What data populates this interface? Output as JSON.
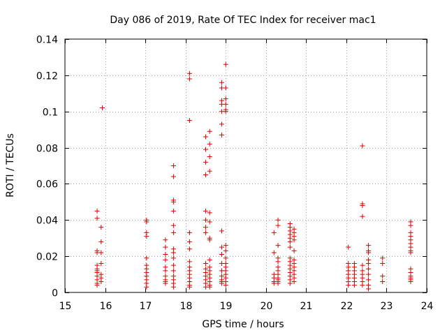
{
  "chart_data": {
    "type": "scatter",
    "title": "Day 086 of 2019, Rate Of TEC Index for receiver mac1",
    "xlabel": "GPS time / hours",
    "ylabel": "ROTI / TECUs",
    "xlim": [
      15,
      24
    ],
    "ylim": [
      0,
      0.14
    ],
    "grid": true,
    "marker": "plus",
    "series_color": "#e00000",
    "xticks": [
      15,
      16,
      17,
      18,
      19,
      20,
      21,
      22,
      23,
      24
    ],
    "xtick_labels": [
      "15",
      "16",
      "17",
      "18",
      "19",
      "20",
      "21",
      "22",
      "23",
      "24"
    ],
    "yticks": [
      0,
      0.02,
      0.04,
      0.06,
      0.08,
      0.1,
      0.12,
      0.14
    ],
    "ytick_labels": [
      "0",
      "0.02",
      "0.04",
      "0.06",
      "0.08",
      "0.1",
      "0.12",
      "0.14"
    ],
    "series": [
      {
        "name": "ROTI",
        "points": [
          [
            15.8,
            0.045
          ],
          [
            15.8,
            0.041
          ],
          [
            15.8,
            0.023
          ],
          [
            15.8,
            0.022
          ],
          [
            15.8,
            0.015
          ],
          [
            15.8,
            0.013
          ],
          [
            15.8,
            0.012
          ],
          [
            15.8,
            0.011
          ],
          [
            15.8,
            0.009
          ],
          [
            15.8,
            0.007
          ],
          [
            15.8,
            0.005
          ],
          [
            15.8,
            0.004
          ],
          [
            15.9,
            0.036
          ],
          [
            15.9,
            0.028
          ],
          [
            15.9,
            0.022
          ],
          [
            15.9,
            0.016
          ],
          [
            15.9,
            0.01
          ],
          [
            15.9,
            0.008
          ],
          [
            15.9,
            0.006
          ],
          [
            15.93,
            0.102
          ],
          [
            17.03,
            0.04
          ],
          [
            17.03,
            0.039
          ],
          [
            17.03,
            0.033
          ],
          [
            17.03,
            0.031
          ],
          [
            17.03,
            0.019
          ],
          [
            17.03,
            0.015
          ],
          [
            17.03,
            0.013
          ],
          [
            17.03,
            0.011
          ],
          [
            17.03,
            0.009
          ],
          [
            17.03,
            0.007
          ],
          [
            17.03,
            0.005
          ],
          [
            17.03,
            0.003
          ],
          [
            17.5,
            0.029
          ],
          [
            17.5,
            0.025
          ],
          [
            17.5,
            0.021
          ],
          [
            17.5,
            0.018
          ],
          [
            17.5,
            0.014
          ],
          [
            17.5,
            0.012
          ],
          [
            17.5,
            0.009
          ],
          [
            17.5,
            0.007
          ],
          [
            17.5,
            0.006
          ],
          [
            17.5,
            0.005
          ],
          [
            17.7,
            0.07
          ],
          [
            17.7,
            0.064
          ],
          [
            17.7,
            0.051
          ],
          [
            17.7,
            0.05
          ],
          [
            17.7,
            0.045
          ],
          [
            17.7,
            0.037
          ],
          [
            17.7,
            0.033
          ],
          [
            17.7,
            0.024
          ],
          [
            17.7,
            0.022
          ],
          [
            17.7,
            0.019
          ],
          [
            17.7,
            0.015
          ],
          [
            17.7,
            0.012
          ],
          [
            17.7,
            0.009
          ],
          [
            17.7,
            0.007
          ],
          [
            17.7,
            0.005
          ],
          [
            17.7,
            0.003
          ],
          [
            18.1,
            0.121
          ],
          [
            18.1,
            0.118
          ],
          [
            18.1,
            0.095
          ],
          [
            18.1,
            0.033
          ],
          [
            18.1,
            0.028
          ],
          [
            18.1,
            0.024
          ],
          [
            18.1,
            0.017
          ],
          [
            18.1,
            0.014
          ],
          [
            18.1,
            0.012
          ],
          [
            18.1,
            0.01
          ],
          [
            18.1,
            0.008
          ],
          [
            18.1,
            0.006
          ],
          [
            18.1,
            0.004
          ],
          [
            18.1,
            0.003
          ],
          [
            18.5,
            0.065
          ],
          [
            18.5,
            0.072
          ],
          [
            18.5,
            0.079
          ],
          [
            18.5,
            0.086
          ],
          [
            18.5,
            0.045
          ],
          [
            18.5,
            0.04
          ],
          [
            18.5,
            0.036
          ],
          [
            18.5,
            0.033
          ],
          [
            18.5,
            0.016
          ],
          [
            18.5,
            0.013
          ],
          [
            18.5,
            0.011
          ],
          [
            18.5,
            0.009
          ],
          [
            18.5,
            0.007
          ],
          [
            18.5,
            0.005
          ],
          [
            18.5,
            0.003
          ],
          [
            18.6,
            0.089
          ],
          [
            18.6,
            0.082
          ],
          [
            18.6,
            0.075
          ],
          [
            18.6,
            0.067
          ],
          [
            18.6,
            0.044
          ],
          [
            18.6,
            0.039
          ],
          [
            18.6,
            0.03
          ],
          [
            18.6,
            0.029
          ],
          [
            18.6,
            0.018
          ],
          [
            18.6,
            0.014
          ],
          [
            18.6,
            0.012
          ],
          [
            18.6,
            0.01
          ],
          [
            18.6,
            0.008
          ],
          [
            18.6,
            0.006
          ],
          [
            18.6,
            0.004
          ],
          [
            18.6,
            0.003
          ],
          [
            18.9,
            0.116
          ],
          [
            18.9,
            0.113
          ],
          [
            18.9,
            0.106
          ],
          [
            18.9,
            0.104
          ],
          [
            18.9,
            0.1
          ],
          [
            18.9,
            0.093
          ],
          [
            18.9,
            0.087
          ],
          [
            18.9,
            0.034
          ],
          [
            18.9,
            0.025
          ],
          [
            18.9,
            0.021
          ],
          [
            18.9,
            0.016
          ],
          [
            18.9,
            0.012
          ],
          [
            18.9,
            0.009
          ],
          [
            18.9,
            0.007
          ],
          [
            18.9,
            0.006
          ],
          [
            18.9,
            0.005
          ],
          [
            19.0,
            0.126
          ],
          [
            19.0,
            0.113
          ],
          [
            19.0,
            0.107
          ],
          [
            19.0,
            0.104
          ],
          [
            19.0,
            0.101
          ],
          [
            19.0,
            0.1
          ],
          [
            19.0,
            0.026
          ],
          [
            19.0,
            0.023
          ],
          [
            19.0,
            0.019
          ],
          [
            19.0,
            0.016
          ],
          [
            19.0,
            0.014
          ],
          [
            19.0,
            0.012
          ],
          [
            19.0,
            0.01
          ],
          [
            19.0,
            0.008
          ],
          [
            19.0,
            0.006
          ],
          [
            19.0,
            0.004
          ],
          [
            20.2,
            0.033
          ],
          [
            20.2,
            0.022
          ],
          [
            20.2,
            0.01
          ],
          [
            20.2,
            0.008
          ],
          [
            20.2,
            0.006
          ],
          [
            20.2,
            0.005
          ],
          [
            20.3,
            0.04
          ],
          [
            20.3,
            0.037
          ],
          [
            20.3,
            0.026
          ],
          [
            20.3,
            0.019
          ],
          [
            20.3,
            0.017
          ],
          [
            20.3,
            0.014
          ],
          [
            20.3,
            0.012
          ],
          [
            20.3,
            0.01
          ],
          [
            20.3,
            0.008
          ],
          [
            20.3,
            0.007
          ],
          [
            20.3,
            0.006
          ],
          [
            20.3,
            0.005
          ],
          [
            20.6,
            0.038
          ],
          [
            20.6,
            0.036
          ],
          [
            20.6,
            0.034
          ],
          [
            20.6,
            0.032
          ],
          [
            20.6,
            0.03
          ],
          [
            20.6,
            0.028
          ],
          [
            20.6,
            0.025
          ],
          [
            20.6,
            0.019
          ],
          [
            20.6,
            0.017
          ],
          [
            20.6,
            0.015
          ],
          [
            20.6,
            0.013
          ],
          [
            20.6,
            0.011
          ],
          [
            20.6,
            0.009
          ],
          [
            20.6,
            0.007
          ],
          [
            20.6,
            0.005
          ],
          [
            20.7,
            0.035
          ],
          [
            20.7,
            0.033
          ],
          [
            20.7,
            0.031
          ],
          [
            20.7,
            0.029
          ],
          [
            20.7,
            0.023
          ],
          [
            20.7,
            0.018
          ],
          [
            20.7,
            0.016
          ],
          [
            20.7,
            0.014
          ],
          [
            20.7,
            0.012
          ],
          [
            20.7,
            0.01
          ],
          [
            20.7,
            0.008
          ],
          [
            20.7,
            0.006
          ],
          [
            22.05,
            0.025
          ],
          [
            22.05,
            0.016
          ],
          [
            22.05,
            0.014
          ],
          [
            22.05,
            0.012
          ],
          [
            22.05,
            0.01
          ],
          [
            22.05,
            0.008
          ],
          [
            22.05,
            0.006
          ],
          [
            22.05,
            0.004
          ],
          [
            22.2,
            0.016
          ],
          [
            22.2,
            0.014
          ],
          [
            22.2,
            0.012
          ],
          [
            22.2,
            0.01
          ],
          [
            22.2,
            0.008
          ],
          [
            22.2,
            0.006
          ],
          [
            22.2,
            0.004
          ],
          [
            22.4,
            0.081
          ],
          [
            22.4,
            0.049
          ],
          [
            22.4,
            0.048
          ],
          [
            22.4,
            0.042
          ],
          [
            22.4,
            0.015
          ],
          [
            22.4,
            0.012
          ],
          [
            22.4,
            0.01
          ],
          [
            22.4,
            0.008
          ],
          [
            22.4,
            0.006
          ],
          [
            22.4,
            0.004
          ],
          [
            22.55,
            0.026
          ],
          [
            22.55,
            0.023
          ],
          [
            22.55,
            0.022
          ],
          [
            22.55,
            0.018
          ],
          [
            22.55,
            0.016
          ],
          [
            22.55,
            0.013
          ],
          [
            22.55,
            0.01
          ],
          [
            22.55,
            0.007
          ],
          [
            22.55,
            0.004
          ],
          [
            22.55,
            0.002
          ],
          [
            22.9,
            0.019
          ],
          [
            22.9,
            0.016
          ],
          [
            22.9,
            0.009
          ],
          [
            22.9,
            0.006
          ],
          [
            23.6,
            0.039
          ],
          [
            23.6,
            0.037
          ],
          [
            23.6,
            0.033
          ],
          [
            23.6,
            0.031
          ],
          [
            23.6,
            0.029
          ],
          [
            23.6,
            0.027
          ],
          [
            23.6,
            0.025
          ],
          [
            23.6,
            0.023
          ],
          [
            23.6,
            0.022
          ],
          [
            23.6,
            0.013
          ],
          [
            23.6,
            0.011
          ],
          [
            23.6,
            0.009
          ],
          [
            23.6,
            0.008
          ],
          [
            23.6,
            0.007
          ],
          [
            23.6,
            0.006
          ]
        ]
      }
    ]
  }
}
